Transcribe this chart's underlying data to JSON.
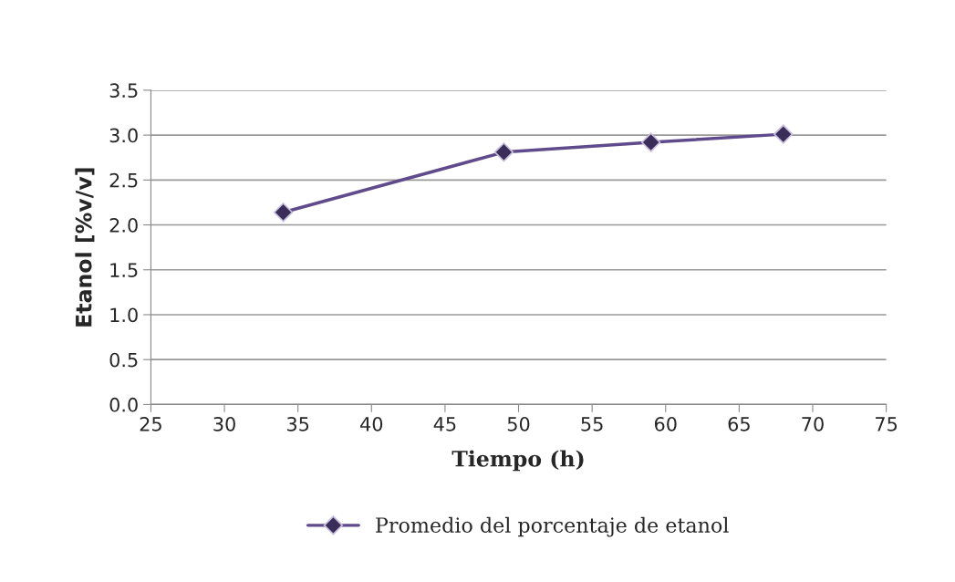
{
  "chart_data": {
    "type": "line",
    "xlabel": "Tiempo (h)",
    "ylabel": "Etanol [%v/v]",
    "x": [
      34,
      49,
      59,
      68
    ],
    "series": [
      {
        "name": "Promedio del porcentaje de etanol",
        "color": "#5f4b8b",
        "values": [
          2.14,
          2.81,
          2.92,
          3.01
        ]
      }
    ],
    "xlim": [
      25,
      75
    ],
    "xticks": [
      25,
      30,
      35,
      40,
      45,
      50,
      55,
      60,
      65,
      70,
      75
    ],
    "ylim": [
      0,
      3.5
    ],
    "yticks": [
      {
        "value": 0,
        "label": "0.0"
      },
      {
        "value": 0.5,
        "label": "0.5"
      },
      {
        "value": 1,
        "label": "1.0"
      },
      {
        "value": 1.5,
        "label": "1.5"
      },
      {
        "value": 2,
        "label": "2.0"
      },
      {
        "value": 2.5,
        "label": "2.5"
      },
      {
        "value": 3,
        "label": "3.0"
      },
      {
        "value": 3.5,
        "label": "3.5"
      }
    ],
    "grid": "y",
    "legend": "bottom",
    "marker": "diamond",
    "line_style": "solid"
  }
}
